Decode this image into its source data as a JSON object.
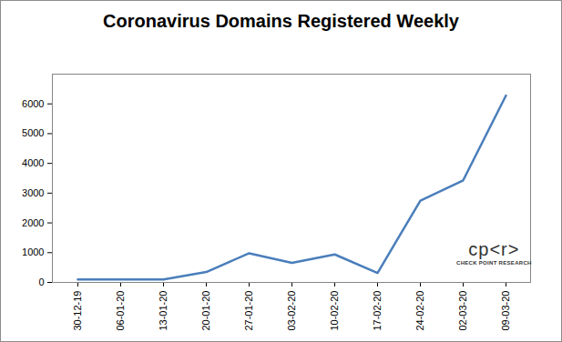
{
  "chart_data": {
    "type": "line",
    "title": "Coronavirus Domains Registered Weekly",
    "categories": [
      "30-12-19",
      "06-01-20",
      "13-01-20",
      "20-01-20",
      "27-01-20",
      "03-02-20",
      "10-02-20",
      "17-02-20",
      "24-02-20",
      "02-03-20",
      "09-03-20"
    ],
    "values": [
      100,
      100,
      100,
      350,
      980,
      660,
      940,
      320,
      2750,
      3430,
      6280
    ],
    "color": "#4a7ebb",
    "ylim": [
      0,
      7000
    ],
    "yticks": [
      0,
      1000,
      2000,
      3000,
      4000,
      5000,
      6000
    ],
    "grid": false,
    "annotations": [
      "cp<r>",
      "CHECK POINT RESEARCH"
    ]
  }
}
